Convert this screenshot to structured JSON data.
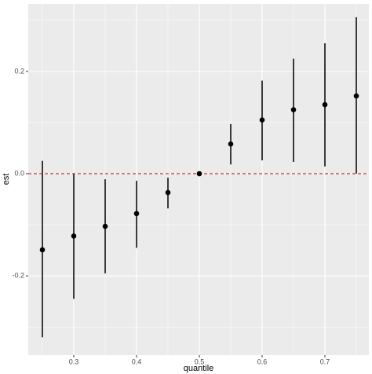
{
  "chart_data": {
    "type": "errorbar",
    "x_label": "quantile",
    "y_label": "est",
    "x": [
      0.25,
      0.3,
      0.35,
      0.4,
      0.45,
      0.5,
      0.55,
      0.6,
      0.65,
      0.7,
      0.75
    ],
    "series": [
      {
        "name": "est",
        "color": "#000000",
        "values": [
          -0.149,
          -0.122,
          -0.103,
          -0.078,
          -0.037,
          0,
          0.058,
          0.105,
          0.125,
          0.135,
          0.152
        ],
        "lower": [
          -0.32,
          -0.245,
          -0.195,
          -0.145,
          -0.068,
          0,
          0.018,
          0.026,
          0.023,
          0.014,
          0
        ],
        "upper": [
          0.025,
          0,
          -0.011,
          -0.014,
          -0.008,
          0,
          0.097,
          0.182,
          0.225,
          0.255,
          0.306
        ]
      }
    ],
    "xlim": [
      0.2275,
      0.77
    ],
    "ylim": [
      -0.355,
      0.332
    ],
    "xticks": [
      0.3,
      0.4,
      0.5,
      0.6,
      0.7
    ],
    "yticks": [
      {
        "value": -0.2,
        "label": "-0.2"
      },
      {
        "value": 0,
        "label": "0.0"
      },
      {
        "value": 0.2,
        "label": "0.2"
      }
    ],
    "grid": true,
    "minor_grid": true,
    "hline": {
      "value": 0,
      "color": "#b22222"
    }
  }
}
